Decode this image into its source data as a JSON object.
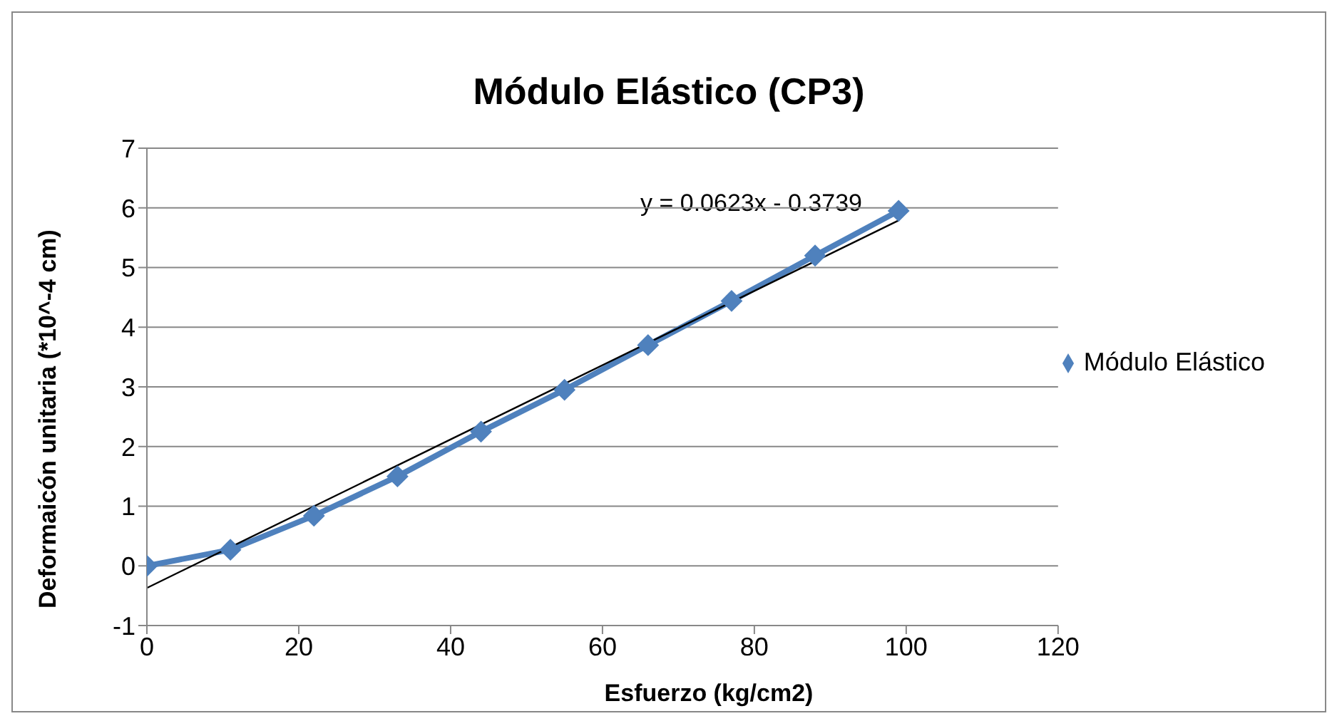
{
  "chart_data": {
    "type": "line",
    "title": "Módulo Elástico (CP3)",
    "xlabel": "Esfuerzo (kg/cm2)",
    "ylabel": "Deformaicón unitaria (*10^-4 cm)",
    "annotations": [
      "y = 0.0623x - 0.3739"
    ],
    "series": [
      {
        "name": "Módulo Elástico",
        "color": "#4f81bd",
        "x": [
          0,
          11,
          22,
          33,
          44,
          55,
          66,
          77,
          88,
          99
        ],
        "values": [
          0,
          0.27,
          0.84,
          1.5,
          2.25,
          2.95,
          3.7,
          4.44,
          5.2,
          5.95
        ],
        "marker": "diamond"
      },
      {
        "type": "line",
        "color": "#000000",
        "x": [
          0,
          99
        ],
        "values": [
          -0.37,
          5.79
        ],
        "marker": "none"
      }
    ],
    "xlim": [
      0,
      120
    ],
    "xticks": [
      0,
      20,
      40,
      60,
      80,
      100,
      120
    ],
    "ylim": [
      -1,
      7
    ],
    "yticks": [
      -1,
      0,
      1,
      2,
      3,
      4,
      5,
      6,
      7
    ],
    "grid": "y",
    "legend": "right",
    "line_style": "solid"
  }
}
